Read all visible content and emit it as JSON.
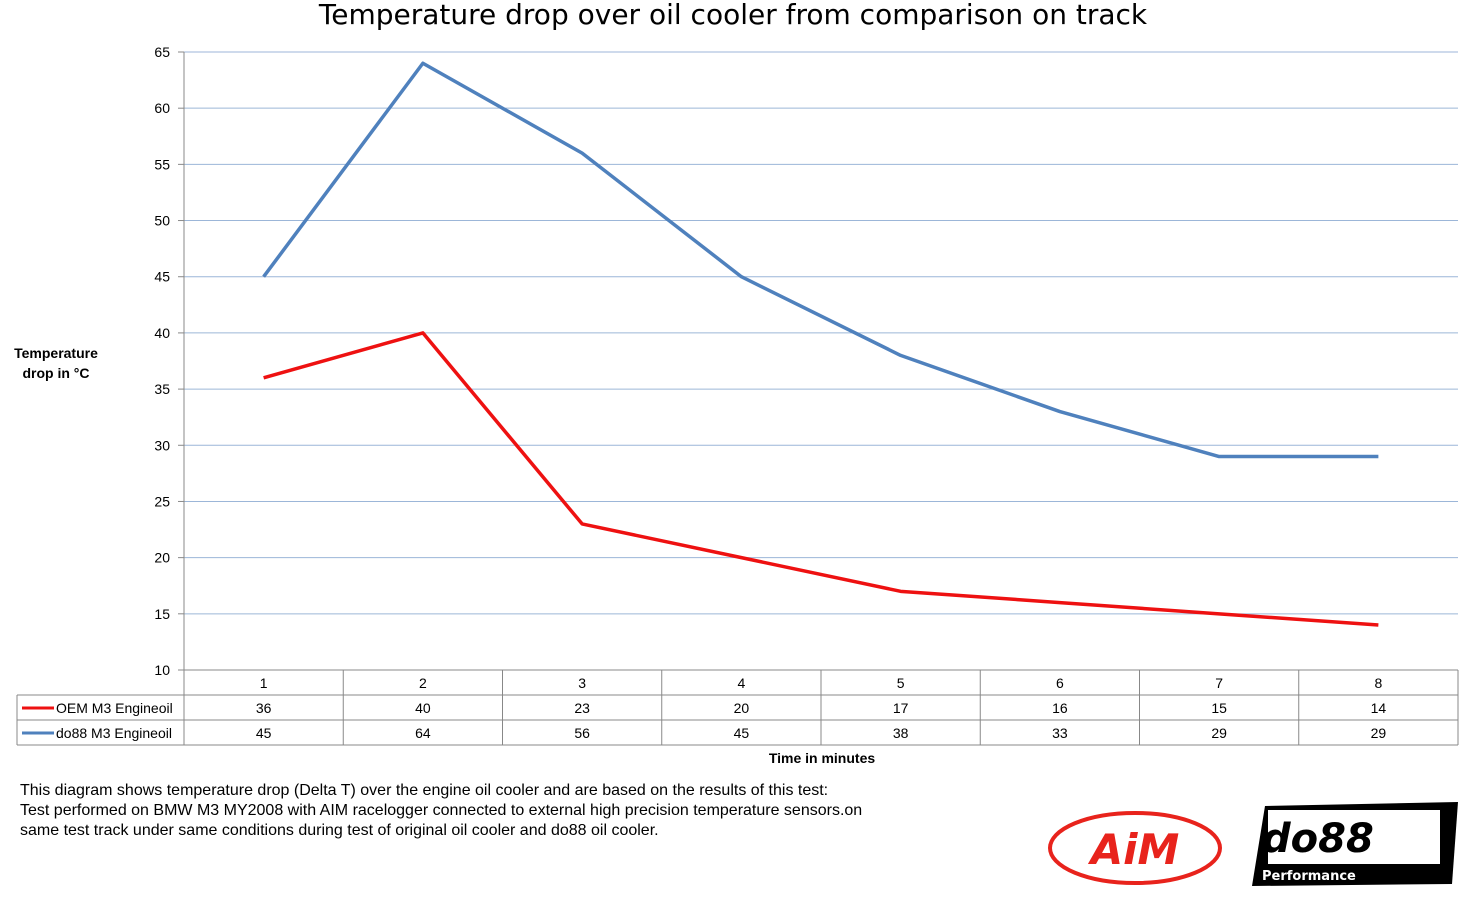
{
  "chart_data": {
    "type": "line",
    "title": "Temperature drop over oil cooler from comparison on track",
    "xlabel": "Time in minutes",
    "ylabel": "Temperature drop in °C",
    "categories": [
      "1",
      "2",
      "3",
      "4",
      "5",
      "6",
      "7",
      "8"
    ],
    "ylim": [
      10,
      65
    ],
    "yticks": [
      10,
      15,
      20,
      25,
      30,
      35,
      40,
      45,
      50,
      55,
      60,
      65
    ],
    "grid": true,
    "legend": "data-table-left",
    "series": [
      {
        "name": "OEM M3 Engineoil",
        "color": "#ee1111",
        "values": [
          36,
          40,
          23,
          20,
          17,
          16,
          15,
          14
        ]
      },
      {
        "name": "do88 M3 Engineoil",
        "color": "#4f81bd",
        "values": [
          45,
          64,
          56,
          45,
          38,
          33,
          29,
          29
        ]
      }
    ]
  },
  "note": [
    "This diagram shows temperature drop (Delta T) over the engine oil cooler and are based on the results of this test:",
    "Test performed on BMW M3 MY2008 with AIM racelogger connected to external high precision temperature sensors.on",
    "same test track under same conditions during test of original oil cooler and do88 oil cooler."
  ],
  "logos": {
    "aim": "AiM",
    "do88": "do88",
    "do88_sub": "Performance"
  }
}
